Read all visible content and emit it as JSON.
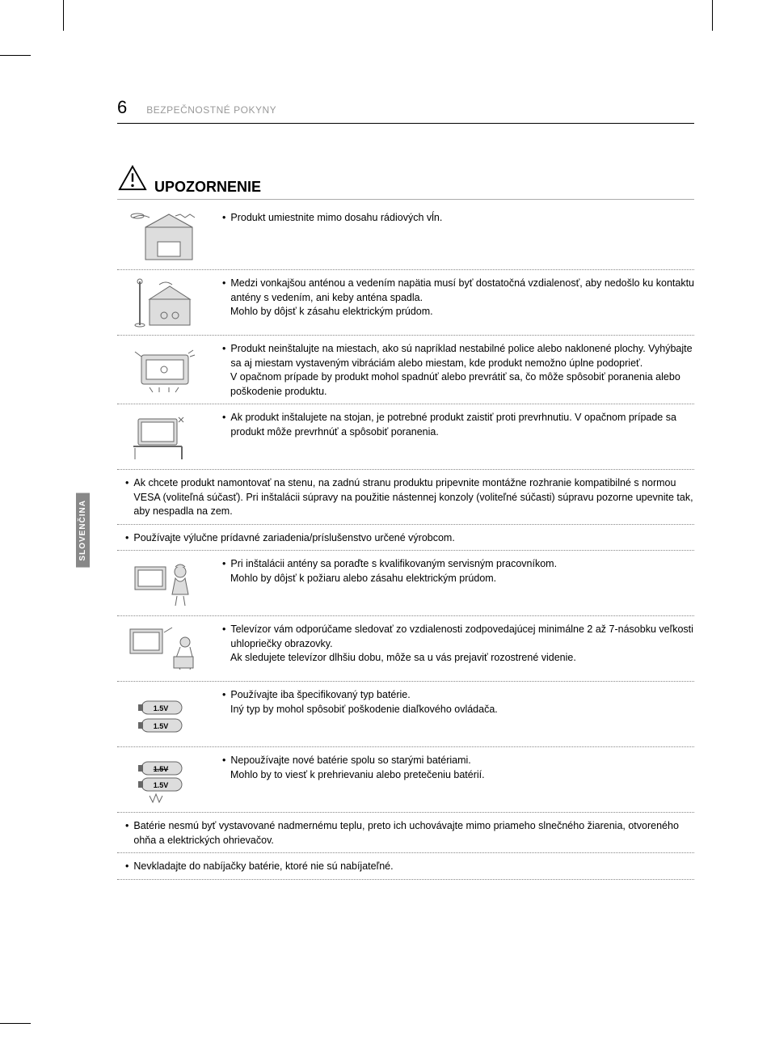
{
  "page": {
    "number": "6",
    "header": "BEZPEČNOSTNÉ POKYNY"
  },
  "sidebar": {
    "label": "SLOVENČINA"
  },
  "caution": {
    "title": "UPOZORNENIE"
  },
  "rows": [
    {
      "hasIcon": true,
      "icon": "radio-waves",
      "text": "Produkt umiestnite mimo dosahu rádiových vĺn."
    },
    {
      "hasIcon": true,
      "icon": "antenna-house",
      "text": "Medzi vonkajšou anténou a vedením napätia musí byť dostatočná vzdialenosť, aby nedošlo ku kontaktu antény s vedením, ani keby anténa spadla.\nMohlo by dôjsť k zásahu elektrickým prúdom."
    },
    {
      "hasIcon": true,
      "icon": "unstable-tv",
      "text": "Produkt neinštalujte na miestach, ako sú napríklad nestabilné police alebo naklonené plochy. Vyhýbajte sa aj miestam vystaveným vibráciám alebo miestam, kde produkt nemožno úplne podoprieť.\nV opačnom prípade by produkt mohol spadnúť alebo prevrátiť sa, čo môže spôsobiť poranenia alebo poškodenie produktu."
    },
    {
      "hasIcon": true,
      "icon": "tv-stand",
      "text": "Ak produkt inštalujete na stojan, je potrebné produkt zaistiť proti prevrhnutiu. V opačnom prípade sa produkt môže prevrhnúť a spôsobiť poranenia."
    },
    {
      "hasIcon": false,
      "text": "Ak chcete produkt namontovať na stenu, na zadnú stranu produktu pripevnite montážne rozhranie kompatibilné s normou VESA (voliteľná súčasť). Pri inštalácii súpravy na použitie nástennej konzoly (voliteľné súčasti) súpravu pozorne upevnite tak, aby nespadla na zem."
    },
    {
      "hasIcon": false,
      "text": "Používajte výlučne prídavné zariadenia/príslušenstvo určené výrobcom."
    },
    {
      "hasIcon": true,
      "icon": "installer",
      "text": "Pri inštalácii antény sa poraďte s kvalifikovaným servisným pracovníkom.\nMohlo by dôjsť k požiaru alebo zásahu elektrickým prúdom."
    },
    {
      "hasIcon": true,
      "icon": "viewing-distance",
      "text": "Televízor vám odporúčame sledovať zo vzdialenosti zodpovedajúcej minimálne 2 až 7-násobku veľkosti uhlopriečky obrazovky.\nAk sledujete televízor dlhšiu dobu, môže sa u vás prejaviť rozostrené videnie."
    },
    {
      "hasIcon": true,
      "icon": "batteries",
      "text": "Používajte iba špecifikovaný typ batérie.\nIný typ by mohol spôsobiť poškodenie diaľkového ovládača."
    },
    {
      "hasIcon": true,
      "icon": "batteries-mixed",
      "text": "Nepoužívajte nové batérie spolu so starými batériami.\nMohlo by to viesť k prehrievaniu alebo pretečeniu batérií."
    },
    {
      "hasIcon": false,
      "text": "Batérie nesmú byť vystavované nadmernému teplu, preto ich uchovávajte mimo priameho slnečného žiarenia, otvoreného ohňa a elektrických ohrievačov."
    },
    {
      "hasIcon": false,
      "text": "Nevkladajte do nabíjačky batérie, ktoré nie sú nabíjateľné."
    }
  ],
  "iconLabels": {
    "battery": "1.5V"
  },
  "colors": {
    "text": "#000000",
    "muted": "#999999",
    "divider": "#888888",
    "sidebar": "#888888",
    "icon_fill": "#cccccc",
    "icon_stroke": "#555555"
  }
}
